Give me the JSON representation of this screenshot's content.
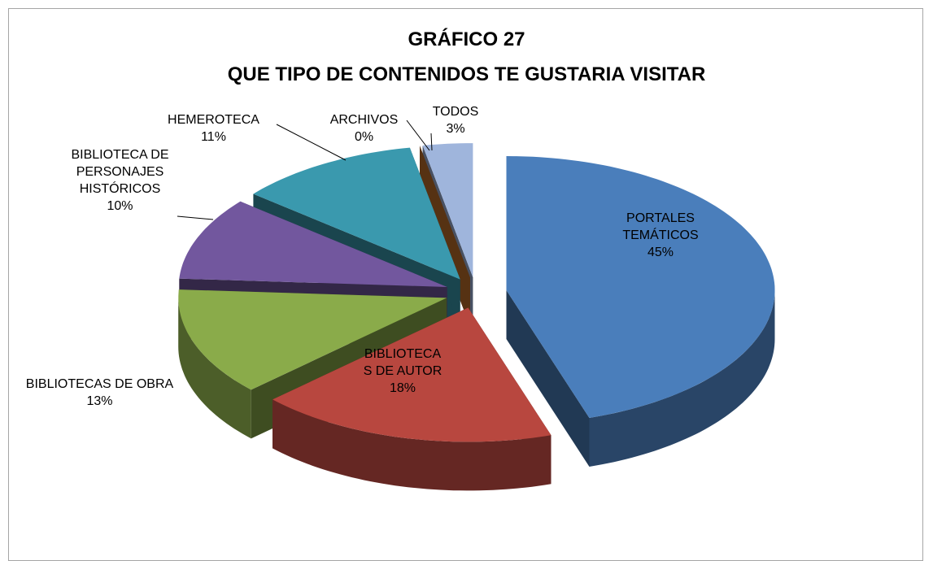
{
  "chart_data": {
    "type": "pie",
    "title": "GRÁFICO 27",
    "subtitle": "QUE TIPO DE CONTENIDOS TE GUSTARIA VISITAR",
    "categories": [
      "PORTALES TEMÁTICOS",
      "BIBLIOTECAS DE AUTOR",
      "BIBLIOTECAS DE OBRA",
      "BIBLIOTECA DE PERSONAJES HISTÓRICOS",
      "HEMEROTECA",
      "ARCHIVOS",
      "TODOS"
    ],
    "values": [
      45,
      18,
      13,
      10,
      11,
      0,
      3
    ],
    "value_labels": [
      "45%",
      "18%",
      "13%",
      "10%",
      "11%",
      "0%",
      "3%"
    ],
    "colors": [
      "#4a7ebb",
      "#b8473f",
      "#8aab4a",
      "#72579e",
      "#3a99ae",
      "#c0702a",
      "#9fb5dc"
    ]
  }
}
